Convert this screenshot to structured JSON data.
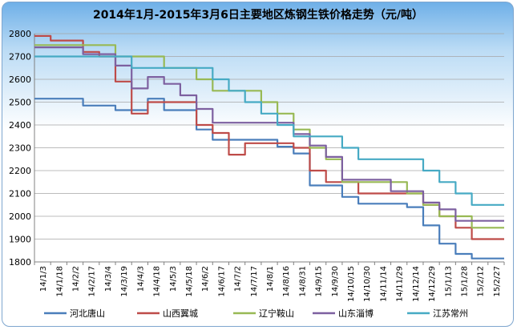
{
  "chart_data": {
    "type": "line",
    "title": "2014年1月-2015年3月6日主要地区炼钢生铁价格走势（元/吨）",
    "xlabel": "",
    "ylabel": "",
    "ylim": [
      1800,
      2800
    ],
    "yticks": [
      1800,
      1900,
      2000,
      2100,
      2200,
      2300,
      2400,
      2500,
      2600,
      2700,
      2800
    ],
    "grid": true,
    "legend_position": "bottom",
    "categories": [
      "14/1/3",
      "14/1/18",
      "14/2/2",
      "14/2/17",
      "14/3/4",
      "14/3/19",
      "14/4/3",
      "14/4/18",
      "14/5/3",
      "14/5/18",
      "14/6/2",
      "14/6/17",
      "14/7/2",
      "14/7/17",
      "14/8/1",
      "14/8/16",
      "14/8/31",
      "14/9/15",
      "14/9/30",
      "14/10/15",
      "14/10/30",
      "14/11/14",
      "14/11/29",
      "14/12/14",
      "14/12/29",
      "15/1/13",
      "15/1/28",
      "15/2/12",
      "15/2/27"
    ],
    "series": [
      {
        "name": "河北唐山",
        "color": "#4a7ebb",
        "values": [
          2515,
          2515,
          2515,
          2485,
          2485,
          2465,
          2465,
          2515,
          2465,
          2465,
          2380,
          2335,
          2335,
          2335,
          2335,
          2305,
          2275,
          2135,
          2135,
          2085,
          2055,
          2055,
          2055,
          2040,
          1960,
          1880,
          1835,
          1815,
          1815
        ]
      },
      {
        "name": "山西翼城",
        "color": "#be4b48",
        "values": [
          2790,
          2770,
          2770,
          2720,
          2700,
          2590,
          2450,
          2500,
          2500,
          2500,
          2400,
          2365,
          2270,
          2320,
          2320,
          2320,
          2300,
          2200,
          2150,
          2150,
          2100,
          2100,
          2100,
          2100,
          2050,
          2000,
          1950,
          1900,
          1900
        ]
      },
      {
        "name": "辽宁鞍山",
        "color": "#98b954",
        "values": [
          2750,
          2750,
          2750,
          2750,
          2750,
          2700,
          2700,
          2700,
          2650,
          2650,
          2600,
          2550,
          2550,
          2550,
          2500,
          2450,
          2380,
          2300,
          2250,
          2150,
          2150,
          2150,
          2150,
          2100,
          2050,
          2000,
          2000,
          1950,
          1950
        ]
      },
      {
        "name": "山东淄博",
        "color": "#7d60a0",
        "values": [
          2740,
          2740,
          2740,
          2710,
          2710,
          2660,
          2560,
          2610,
          2580,
          2530,
          2470,
          2410,
          2410,
          2410,
          2410,
          2410,
          2360,
          2310,
          2260,
          2160,
          2160,
          2160,
          2110,
          2110,
          2060,
          2030,
          1980,
          1980,
          1980
        ]
      },
      {
        "name": "江苏常州",
        "color": "#46aac4",
        "values": [
          2700,
          2700,
          2700,
          2700,
          2700,
          2700,
          2650,
          2650,
          2650,
          2650,
          2650,
          2600,
          2550,
          2500,
          2450,
          2400,
          2350,
          2350,
          2350,
          2300,
          2250,
          2250,
          2250,
          2250,
          2200,
          2150,
          2100,
          2050,
          2050
        ]
      }
    ]
  }
}
